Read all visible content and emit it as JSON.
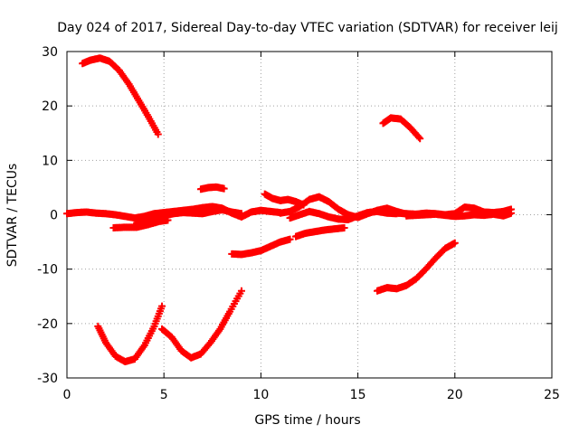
{
  "chart_data": {
    "type": "scatter",
    "title": "Day 024 of 2017, Sidereal Day-to-day VTEC variation (SDTVAR) for receiver leij",
    "xlabel": "GPS time / hours",
    "ylabel": "SDTVAR / TECUs",
    "xlim": [
      0,
      25
    ],
    "ylim": [
      -30,
      30
    ],
    "xticks": [
      0,
      5,
      10,
      15,
      20,
      25
    ],
    "yticks": [
      -30,
      -20,
      -10,
      0,
      10,
      20,
      30
    ],
    "grid": true,
    "marker": "plus",
    "series_color": "#ff0000",
    "series": [
      {
        "name": "arc-top-left",
        "points": [
          [
            0.8,
            27.8
          ],
          [
            1.2,
            28.4
          ],
          [
            1.7,
            28.8
          ],
          [
            2.2,
            28.2
          ],
          [
            2.7,
            26.5
          ],
          [
            3.2,
            24.0
          ],
          [
            3.7,
            21.0
          ],
          [
            4.2,
            18.0
          ],
          [
            4.7,
            14.8
          ]
        ]
      },
      {
        "name": "arc-top-right",
        "points": [
          [
            16.3,
            16.8
          ],
          [
            16.7,
            17.8
          ],
          [
            17.2,
            17.6
          ],
          [
            17.7,
            16.0
          ],
          [
            18.2,
            14.0
          ]
        ]
      },
      {
        "name": "arc-bottom-left-v",
        "points": [
          [
            1.6,
            -20.5
          ],
          [
            2.0,
            -23.5
          ],
          [
            2.5,
            -26.0
          ],
          [
            3.0,
            -27.0
          ],
          [
            3.5,
            -26.5
          ],
          [
            4.0,
            -24.0
          ],
          [
            4.5,
            -20.5
          ],
          [
            4.9,
            -16.8
          ]
        ]
      },
      {
        "name": "arc-bottom-mid",
        "points": [
          [
            4.9,
            -21.0
          ],
          [
            5.4,
            -22.5
          ],
          [
            5.9,
            -25.0
          ],
          [
            6.4,
            -26.3
          ],
          [
            6.9,
            -25.6
          ],
          [
            7.4,
            -23.5
          ],
          [
            7.9,
            -21.0
          ],
          [
            8.4,
            -17.8
          ],
          [
            9.0,
            -14.0
          ]
        ]
      },
      {
        "name": "arc-bottom-right",
        "points": [
          [
            16.0,
            -14.0
          ],
          [
            16.5,
            -13.4
          ],
          [
            17.0,
            -13.6
          ],
          [
            17.5,
            -13.0
          ],
          [
            18.0,
            -11.8
          ],
          [
            18.5,
            -10.0
          ],
          [
            19.0,
            -8.0
          ],
          [
            19.5,
            -6.2
          ],
          [
            20.0,
            -5.2
          ]
        ]
      },
      {
        "name": "arc-mid-minus7",
        "points": [
          [
            8.5,
            -7.2
          ],
          [
            9.0,
            -7.3
          ],
          [
            9.5,
            -7.0
          ],
          [
            10.0,
            -6.6
          ],
          [
            10.5,
            -5.8
          ],
          [
            11.0,
            -5.0
          ],
          [
            11.5,
            -4.5
          ]
        ]
      },
      {
        "name": "arc-mid-minus3",
        "points": [
          [
            11.8,
            -4.0
          ],
          [
            12.3,
            -3.4
          ],
          [
            12.8,
            -3.1
          ],
          [
            13.3,
            -2.8
          ],
          [
            13.8,
            -2.6
          ],
          [
            14.3,
            -2.4
          ]
        ]
      },
      {
        "name": "arc-minus2-left",
        "points": [
          [
            2.4,
            -2.4
          ],
          [
            3.0,
            -2.3
          ],
          [
            3.6,
            -2.3
          ],
          [
            4.2,
            -1.8
          ],
          [
            4.8,
            -1.2
          ],
          [
            5.2,
            -1.0
          ]
        ]
      },
      {
        "name": "arc-plus5",
        "points": [
          [
            6.9,
            4.7
          ],
          [
            7.3,
            5.0
          ],
          [
            7.7,
            5.1
          ],
          [
            8.1,
            4.8
          ]
        ]
      },
      {
        "name": "arc-plus3",
        "points": [
          [
            10.2,
            3.8
          ],
          [
            10.6,
            3.0
          ],
          [
            11.0,
            2.6
          ],
          [
            11.4,
            2.8
          ],
          [
            11.8,
            2.4
          ],
          [
            12.2,
            1.8
          ]
        ]
      },
      {
        "name": "baseline-left",
        "points": [
          [
            0.0,
            0.2
          ],
          [
            0.5,
            0.4
          ],
          [
            1.0,
            0.5
          ],
          [
            1.5,
            0.3
          ],
          [
            2.0,
            0.2
          ],
          [
            2.5,
            0.0
          ],
          [
            3.0,
            -0.3
          ],
          [
            3.5,
            -0.6
          ],
          [
            4.0,
            -0.3
          ],
          [
            4.5,
            0.2
          ],
          [
            5.0,
            0.4
          ],
          [
            5.5,
            0.6
          ],
          [
            6.0,
            0.8
          ],
          [
            6.5,
            1.0
          ],
          [
            7.0,
            1.3
          ],
          [
            7.5,
            1.5
          ],
          [
            8.0,
            1.2
          ],
          [
            8.5,
            0.3
          ],
          [
            9.0,
            -0.4
          ],
          [
            9.5,
            0.5
          ],
          [
            10.0,
            0.8
          ],
          [
            10.5,
            0.6
          ],
          [
            11.0,
            0.4
          ]
        ]
      },
      {
        "name": "baseline-lower",
        "points": [
          [
            3.6,
            -1.5
          ],
          [
            4.0,
            -1.0
          ],
          [
            4.5,
            -0.4
          ],
          [
            5.0,
            -0.2
          ],
          [
            5.5,
            0.2
          ],
          [
            6.0,
            0.4
          ],
          [
            6.5,
            0.3
          ],
          [
            7.0,
            0.2
          ],
          [
            7.5,
            0.6
          ],
          [
            8.0,
            0.9
          ],
          [
            8.5,
            0.5
          ],
          [
            9.0,
            0.2
          ]
        ]
      },
      {
        "name": "wave-center",
        "points": [
          [
            11.0,
            0.3
          ],
          [
            11.5,
            0.6
          ],
          [
            12.0,
            1.5
          ],
          [
            12.5,
            2.8
          ],
          [
            13.0,
            3.3
          ],
          [
            13.5,
            2.4
          ],
          [
            14.0,
            1.0
          ],
          [
            14.5,
            0.0
          ],
          [
            15.0,
            -0.5
          ],
          [
            15.5,
            0.2
          ],
          [
            16.0,
            0.8
          ],
          [
            16.5,
            1.2
          ],
          [
            17.0,
            0.6
          ],
          [
            17.5,
            0.1
          ]
        ]
      },
      {
        "name": "wave-center-2",
        "points": [
          [
            11.5,
            -0.6
          ],
          [
            12.0,
            0.0
          ],
          [
            12.5,
            0.6
          ],
          [
            13.0,
            0.2
          ],
          [
            13.5,
            -0.4
          ],
          [
            14.0,
            -0.8
          ],
          [
            14.5,
            -0.9
          ],
          [
            15.0,
            -0.2
          ],
          [
            15.5,
            0.4
          ],
          [
            16.0,
            0.6
          ],
          [
            16.5,
            0.3
          ],
          [
            17.0,
            0.2
          ]
        ]
      },
      {
        "name": "baseline-right",
        "points": [
          [
            17.0,
            0.3
          ],
          [
            17.5,
            0.2
          ],
          [
            18.0,
            0.1
          ],
          [
            18.5,
            0.3
          ],
          [
            19.0,
            0.2
          ],
          [
            19.5,
            0.0
          ],
          [
            20.0,
            0.2
          ],
          [
            20.5,
            1.4
          ],
          [
            21.0,
            1.2
          ],
          [
            21.5,
            0.5
          ],
          [
            22.0,
            0.4
          ],
          [
            22.5,
            0.6
          ],
          [
            22.9,
            1.0
          ]
        ]
      },
      {
        "name": "baseline-right-2",
        "points": [
          [
            17.5,
            -0.2
          ],
          [
            18.0,
            -0.1
          ],
          [
            18.5,
            0.0
          ],
          [
            19.0,
            0.1
          ],
          [
            19.5,
            -0.1
          ],
          [
            20.0,
            -0.3
          ],
          [
            20.5,
            -0.2
          ],
          [
            21.0,
            0.0
          ],
          [
            21.5,
            -0.1
          ],
          [
            22.0,
            0.1
          ],
          [
            22.5,
            -0.2
          ],
          [
            22.9,
            0.3
          ]
        ]
      }
    ]
  }
}
